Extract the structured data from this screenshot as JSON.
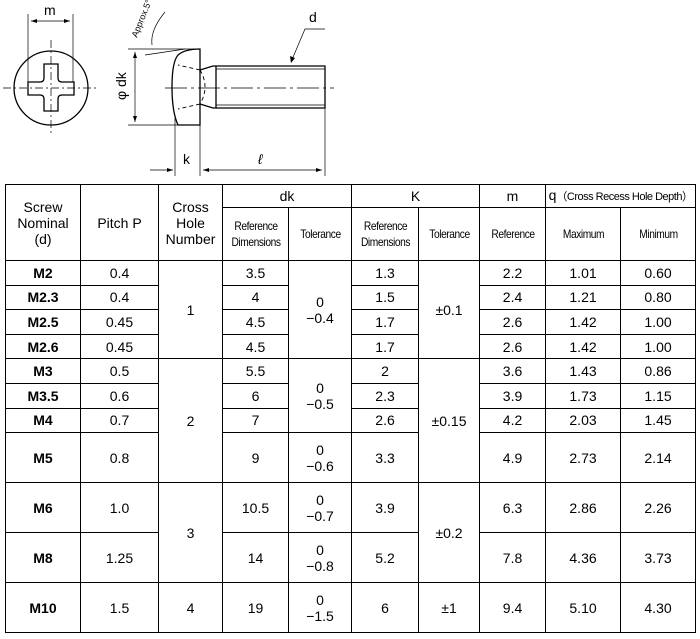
{
  "drawing": {
    "labels": {
      "m": "m",
      "d": "d",
      "dk": "φ dk",
      "k": "k",
      "l": "ℓ",
      "angle": "Approx.5°"
    }
  },
  "table": {
    "headers": {
      "screw_nominal": [
        "Screw",
        "Nominal",
        "(d)"
      ],
      "pitch": "Pitch P",
      "cross_hole": [
        "Cross",
        "Hole",
        "Number"
      ],
      "dk": "dk",
      "K": "K",
      "m": "m",
      "q_prefix": "q",
      "q": "（Cross Recess Hole Depth）",
      "ref_dim": [
        "Reference",
        "Dimensions"
      ],
      "tolerance": "Tolerance",
      "reference": "Reference",
      "maximum": "Maximum",
      "minimum": "Minimum"
    },
    "rows": [
      {
        "d": "M2",
        "p": "0.4",
        "dk": "3.5",
        "k": "1.3",
        "m": "2.2",
        "qmax": "1.01",
        "qmin": "0.60"
      },
      {
        "d": "M2.3",
        "p": "0.4",
        "dk": "4",
        "k": "1.5",
        "m": "2.4",
        "qmax": "1.21",
        "qmin": "0.80"
      },
      {
        "d": "M2.5",
        "p": "0.45",
        "dk": "4.5",
        "k": "1.7",
        "m": "2.6",
        "qmax": "1.42",
        "qmin": "1.00"
      },
      {
        "d": "M2.6",
        "p": "0.45",
        "dk": "4.5",
        "k": "1.7",
        "m": "2.6",
        "qmax": "1.42",
        "qmin": "1.00"
      },
      {
        "d": "M3",
        "p": "0.5",
        "dk": "5.5",
        "k": "2",
        "m": "3.6",
        "qmax": "1.43",
        "qmin": "0.86"
      },
      {
        "d": "M3.5",
        "p": "0.6",
        "dk": "6",
        "k": "2.3",
        "m": "3.9",
        "qmax": "1.73",
        "qmin": "1.15"
      },
      {
        "d": "M4",
        "p": "0.7",
        "dk": "7",
        "k": "2.6",
        "m": "4.2",
        "qmax": "2.03",
        "qmin": "1.45"
      },
      {
        "d": "M5",
        "p": "0.8",
        "dk": "9",
        "k": "3.3",
        "m": "4.9",
        "qmax": "2.73",
        "qmin": "2.14"
      },
      {
        "d": "M6",
        "p": "1.0",
        "dk": "10.5",
        "k": "3.9",
        "m": "6.3",
        "qmax": "2.86",
        "qmin": "2.26"
      },
      {
        "d": "M8",
        "p": "1.25",
        "dk": "14",
        "k": "5.2",
        "m": "7.8",
        "qmax": "4.36",
        "qmin": "3.73"
      },
      {
        "d": "M10",
        "p": "1.5",
        "dk": "19",
        "k": "6",
        "m": "9.4",
        "qmax": "5.10",
        "qmin": "4.30"
      }
    ],
    "hole_groups": [
      {
        "start": 0,
        "span": 4,
        "v": "1"
      },
      {
        "start": 4,
        "span": 4,
        "v": "2"
      },
      {
        "start": 8,
        "span": 2,
        "v": "3"
      },
      {
        "start": 10,
        "span": 1,
        "v": "4"
      }
    ],
    "dk_tol_groups": [
      {
        "start": 0,
        "span": 4,
        "v": [
          "0",
          "−0.4"
        ]
      },
      {
        "start": 4,
        "span": 3,
        "v": [
          "0",
          "−0.5"
        ]
      },
      {
        "start": 7,
        "span": 1,
        "v": [
          "0",
          "−0.6"
        ]
      },
      {
        "start": 8,
        "span": 1,
        "v": [
          "0",
          "−0.7"
        ]
      },
      {
        "start": 9,
        "span": 1,
        "v": [
          "0",
          "−0.8"
        ]
      },
      {
        "start": 10,
        "span": 1,
        "v": [
          "0",
          "−1.5"
        ]
      }
    ],
    "k_tol_groups": [
      {
        "start": 0,
        "span": 4,
        "v": "±0.1"
      },
      {
        "start": 4,
        "span": 4,
        "v": "±0.15"
      },
      {
        "start": 8,
        "span": 2,
        "v": "±0.2"
      },
      {
        "start": 10,
        "span": 1,
        "v": "±1"
      }
    ]
  }
}
